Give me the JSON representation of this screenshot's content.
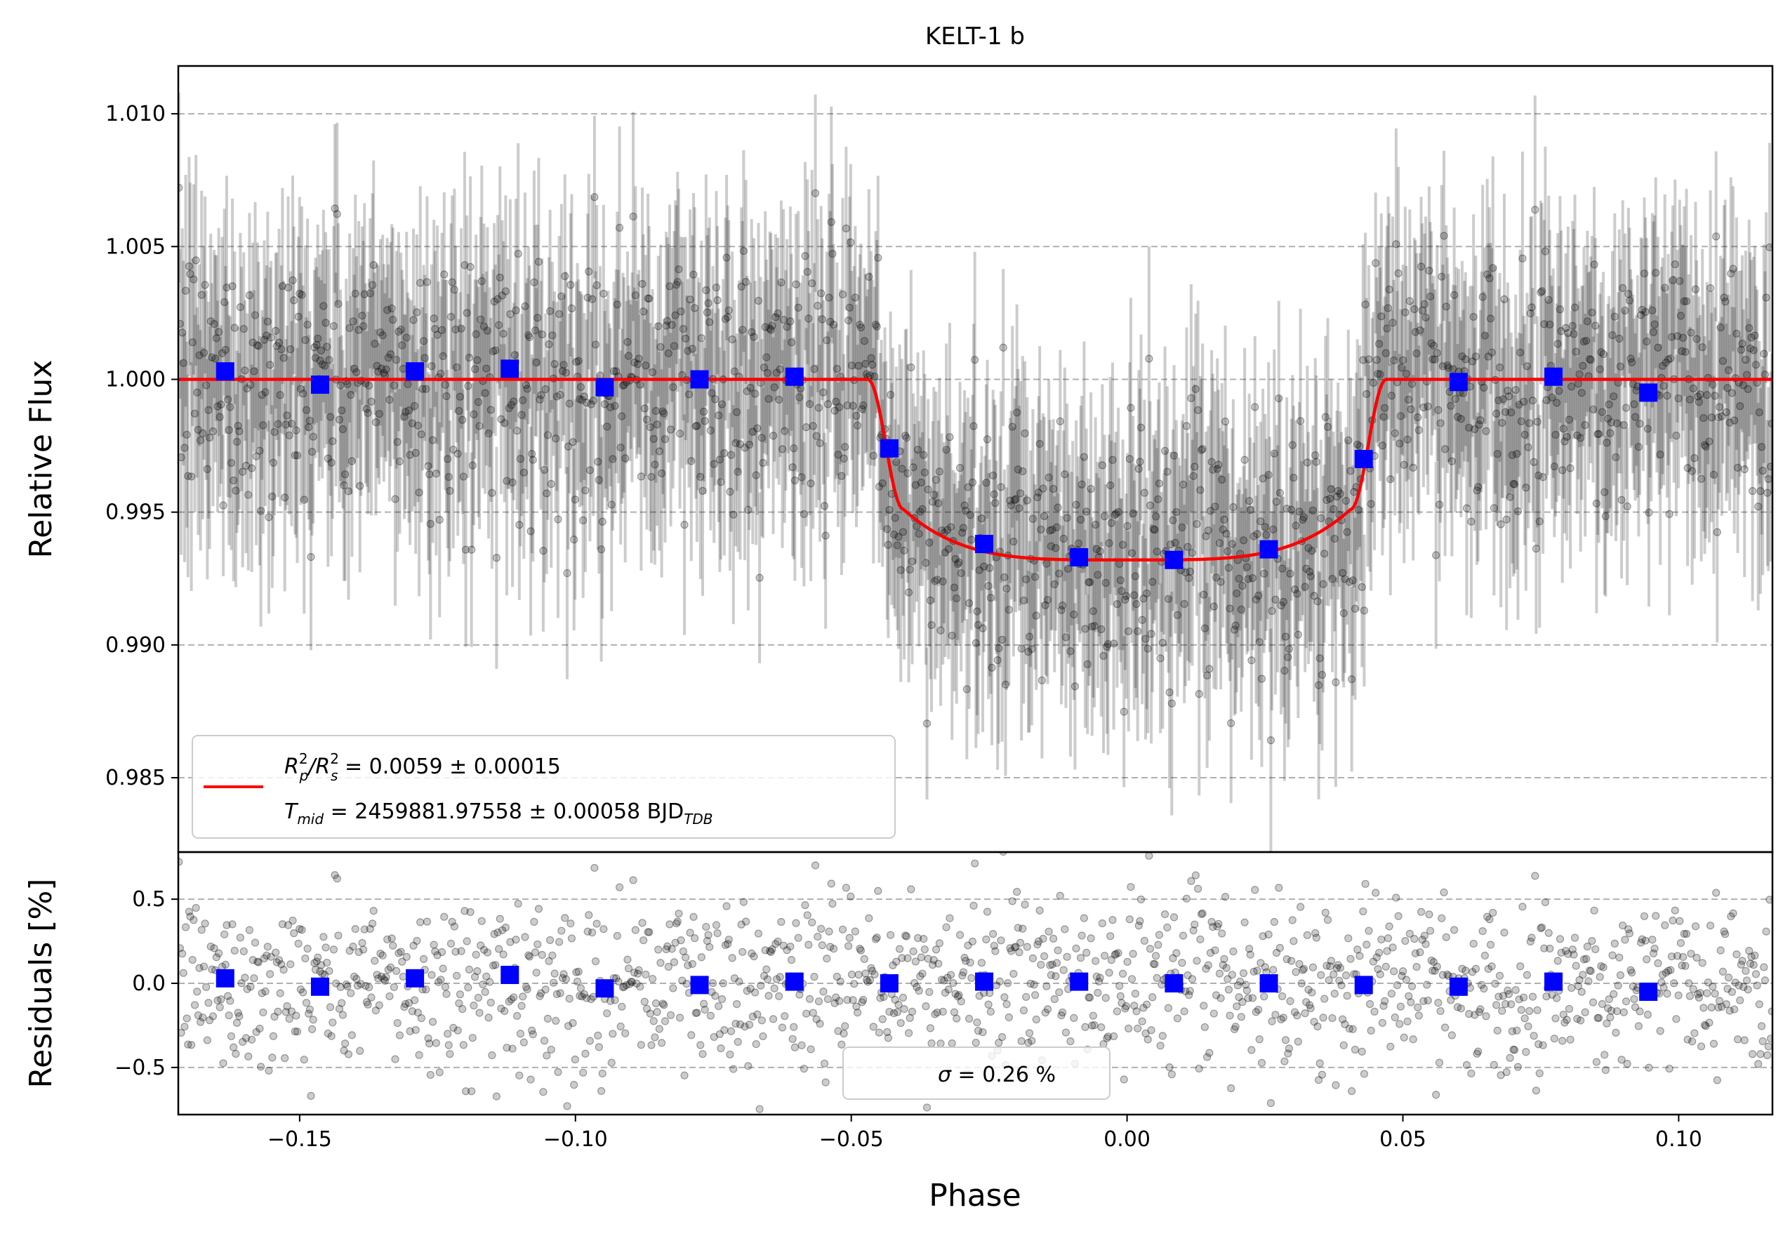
{
  "chart_data": [
    {
      "type": "scatter",
      "title": "KELT-1 b",
      "xlabel": "",
      "ylabel": "Relative Flux",
      "xlim": [
        -0.172,
        0.117
      ],
      "ylim": [
        0.9822,
        1.0118
      ],
      "grid": "y-dashed",
      "y_ticks": [
        0.985,
        0.99,
        0.995,
        1.0,
        1.005,
        1.01
      ],
      "y_tick_labels": [
        "0.985",
        "0.990",
        "0.995",
        "1.000",
        "1.005",
        "1.010"
      ],
      "series": [
        {
          "kind": "model",
          "color": "#ff0000",
          "transit": {
            "t1": -0.047,
            "t2": -0.0405,
            "t3": 0.0405,
            "t4": 0.047,
            "depth_center": 0.0068,
            "depth_at_contact": 0.0049
          }
        },
        {
          "kind": "binned",
          "color": "#0000ff",
          "x": [
            -0.1635,
            -0.1463,
            -0.1291,
            -0.1119,
            -0.0947,
            -0.0775,
            -0.0603,
            -0.0431,
            -0.0259,
            -0.0087,
            0.0085,
            0.0257,
            0.0429,
            0.0601,
            0.0773,
            0.0945
          ],
          "y": [
            1.0003,
            0.9998,
            1.0003,
            1.0004,
            0.9997,
            1.0,
            1.0001,
            0.9974,
            0.9938,
            0.9933,
            0.9932,
            0.9936,
            0.997,
            0.9999,
            1.0001,
            0.9995
          ]
        },
        {
          "kind": "raw",
          "color": "#000000",
          "n_points": 1400,
          "noise_sigma": 0.0026,
          "errorbar": 0.0035
        }
      ],
      "legend": {
        "placement": "lower-left",
        "line1": {
          "base1": "R",
          "sup1": "2",
          "sub1": "p",
          "mid": "/R",
          "sup2": "2",
          "sub2": "s",
          "rest": " = 0.0059 ± 0.00015"
        },
        "line2": {
          "base": "T",
          "sub": "mid",
          "rest": " = 2459881.97558 ± 0.00058 BJD",
          "unit_sub": "TDB"
        }
      }
    },
    {
      "type": "scatter",
      "title": "",
      "xlabel": "Phase",
      "ylabel": "Residuals [%]",
      "xlim": [
        -0.172,
        0.117
      ],
      "ylim": [
        -0.78,
        0.78
      ],
      "grid": "y-dashed",
      "x_ticks": [
        -0.15,
        -0.1,
        -0.05,
        0.0,
        0.05,
        0.1
      ],
      "x_tick_labels": [
        "−0.15",
        "−0.10",
        "−0.05",
        "0.00",
        "0.05",
        "0.10"
      ],
      "y_ticks": [
        -0.5,
        0.0,
        0.5
      ],
      "y_tick_labels": [
        "−0.5",
        "0.0",
        "0.5"
      ],
      "series": [
        {
          "kind": "binned",
          "color": "#0000ff",
          "x": [
            -0.1635,
            -0.1463,
            -0.1291,
            -0.1119,
            -0.0947,
            -0.0775,
            -0.0603,
            -0.0431,
            -0.0259,
            -0.0087,
            0.0085,
            0.0257,
            0.0429,
            0.0601,
            0.0773,
            0.0945
          ],
          "y": [
            0.03,
            -0.02,
            0.03,
            0.05,
            -0.03,
            -0.01,
            0.01,
            0.0,
            0.01,
            0.01,
            0.0,
            0.0,
            -0.01,
            -0.02,
            0.01,
            -0.05
          ]
        },
        {
          "kind": "raw",
          "color": "#000000",
          "n_points": 1400,
          "noise_sigma": 0.26
        }
      ],
      "legend": {
        "placement": "lower-center",
        "sigma_symbol": "σ",
        "text": " = 0.26 %"
      }
    }
  ]
}
